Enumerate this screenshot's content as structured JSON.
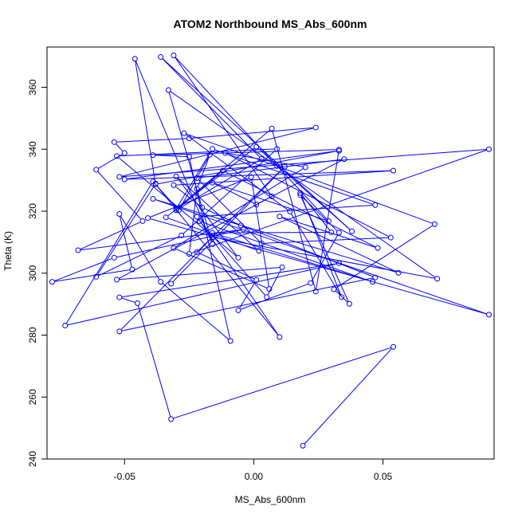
{
  "chart_data": {
    "type": "scatter",
    "title": "ATOM2 Northbound MS_Abs_600nm",
    "xlabel": "MS_Abs_600nm",
    "ylabel": "Theta (K)",
    "xlim": [
      -0.08,
      0.093
    ],
    "ylim": [
      240,
      373
    ],
    "xticks": [
      -0.05,
      0.0,
      0.05
    ],
    "xtick_labels": [
      "-0.05",
      "0.00",
      "0.05"
    ],
    "yticks": [
      240,
      260,
      280,
      300,
      320,
      340,
      360
    ],
    "ytick_labels": [
      "240",
      "260",
      "280",
      "300",
      "320",
      "340",
      "360"
    ],
    "grid": false,
    "legend": "none",
    "series_color": "#0000ff",
    "series": [
      {
        "style": "points-and-lines",
        "points": [
          [
            0.019,
            244.3
          ],
          [
            0.054,
            276.2
          ],
          [
            -0.032,
            252.9
          ],
          [
            -0.045,
            290.3
          ],
          [
            -0.052,
            292.2
          ],
          [
            0.033,
            303.2
          ],
          [
            -0.073,
            283.1
          ],
          [
            -0.039,
            329.6
          ],
          [
            -0.029,
            320.3
          ],
          [
            -0.017,
            338.2
          ],
          [
            -0.022,
            327.2
          ],
          [
            -0.025,
            306.2
          ],
          [
            0.091,
            340.0
          ],
          [
            -0.052,
            331.1
          ],
          [
            0.024,
            347.0
          ],
          [
            -0.025,
            343.5
          ],
          [
            -0.054,
            342.3
          ],
          [
            -0.05,
            338.8
          ],
          [
            -0.061,
            333.4
          ],
          [
            -0.043,
            316.8
          ],
          [
            -0.068,
            307.4
          ],
          [
            -0.004,
            314.1
          ],
          [
            -0.054,
            305.0
          ],
          [
            -0.078,
            297.2
          ],
          [
            -0.047,
            301.2
          ],
          [
            -0.052,
            319.1
          ],
          [
            -0.036,
            297.2
          ],
          [
            -0.009,
            278.1
          ],
          [
            -0.025,
            337.6
          ],
          [
            -0.039,
            338.1
          ],
          [
            0.033,
            339.9
          ],
          [
            0.024,
            294.1
          ],
          [
            0.007,
            346.7
          ],
          [
            -0.03,
            320.8
          ],
          [
            -0.016,
            340.1
          ],
          [
            0.047,
            322.0
          ],
          [
            -0.022,
            318.2
          ],
          [
            0.01,
            279.4
          ],
          [
            -0.038,
            328.7
          ],
          [
            0.033,
            339.5
          ],
          [
            -0.05,
            330.3
          ],
          [
            0.054,
            333.1
          ],
          [
            -0.031,
            328.4
          ],
          [
            -0.02,
            321.2
          ],
          [
            -0.005,
            315.4
          ],
          [
            0.047,
            298.6
          ],
          [
            -0.052,
            281.2
          ],
          [
            -0.016,
            311.6
          ],
          [
            0.071,
            298.2
          ],
          [
            -0.033,
            359.1
          ],
          [
            -0.016,
            309.4
          ],
          [
            -0.046,
            369.2
          ],
          [
            -0.038,
            328.9
          ],
          [
            -0.061,
            298.8
          ],
          [
            -0.028,
            312.2
          ],
          [
            0.009,
            340.1
          ],
          [
            -0.053,
            337.8
          ],
          [
            -0.006,
            305.0
          ],
          [
            -0.03,
            331.2
          ],
          [
            0.002,
            307.2
          ],
          [
            -0.034,
            318.0
          ],
          [
            0.001,
            340.8
          ],
          [
            0.038,
            313.5
          ],
          [
            -0.036,
            369.8
          ],
          [
            0.003,
            336.9
          ],
          [
            -0.03,
            320.3
          ],
          [
            -0.012,
            333.1
          ],
          [
            0.048,
            308.1
          ],
          [
            0.01,
            318.3
          ],
          [
            0.056,
            300.1
          ],
          [
            -0.039,
            324.0
          ],
          [
            0.091,
            286.6
          ],
          [
            -0.041,
            317.8
          ],
          [
            -0.001,
            331.0
          ],
          [
            0.006,
            294.9
          ],
          [
            -0.031,
            308.1
          ],
          [
            0.02,
            334.2
          ],
          [
            -0.011,
            338.8
          ],
          [
            0.053,
            311.5
          ],
          [
            0.003,
            309.6
          ],
          [
            -0.022,
            330.7
          ],
          [
            0.035,
            336.8
          ],
          [
            0.001,
            322.2
          ],
          [
            -0.016,
            329.2
          ],
          [
            0.029,
            316.8
          ],
          [
            -0.031,
            370.3
          ],
          [
            0.007,
            324.8
          ],
          [
            -0.053,
            297.9
          ],
          [
            0.011,
            301.9
          ],
          [
            0.005,
            292.3
          ],
          [
            -0.021,
            316.8
          ],
          [
            0.046,
            297.2
          ],
          [
            -0.016,
            313.0
          ],
          [
            0.03,
            313.2
          ],
          [
            0.018,
            325.9
          ],
          [
            0.034,
            292.3
          ],
          [
            0.014,
            319.9
          ],
          [
            -0.027,
            345.2
          ],
          [
            0.009,
            334.6
          ],
          [
            0.07,
            315.8
          ],
          [
            0.031,
            294.8
          ],
          [
            0.037,
            290.1
          ],
          [
            0.018,
            325.2
          ],
          [
            0.033,
            313.1
          ],
          [
            0.022,
            296.8
          ],
          [
            -0.006,
            288.0
          ],
          [
            0.001,
            297.8
          ],
          [
            -0.022,
            306.8
          ],
          [
            0.012,
            334.4
          ],
          [
            -0.032,
            296.6
          ]
        ]
      }
    ]
  }
}
